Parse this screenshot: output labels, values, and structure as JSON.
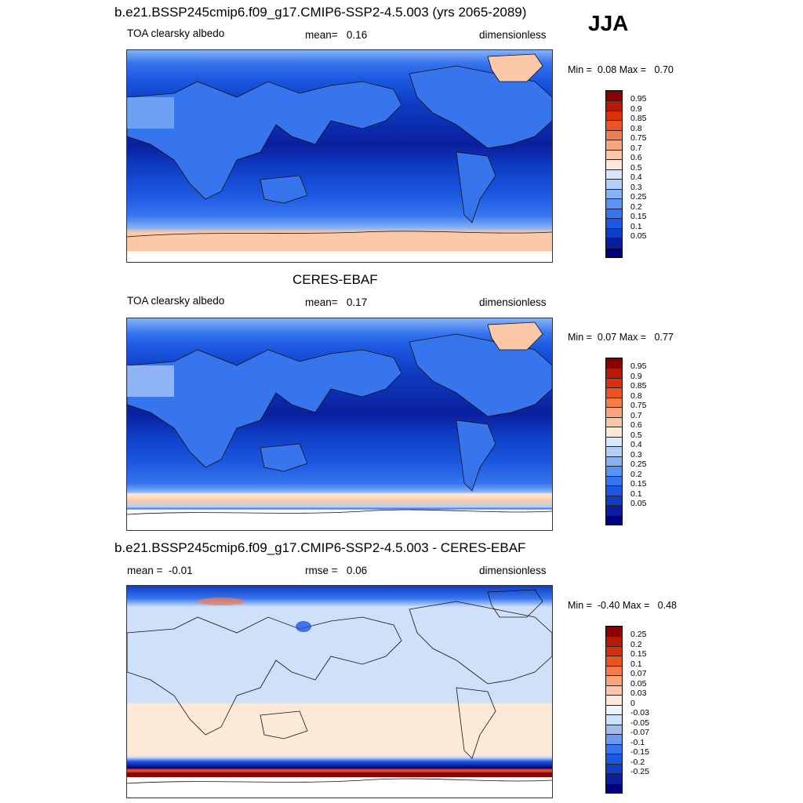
{
  "season": "JJA",
  "colors": {
    "albedo": [
      "#00007f",
      "#0a1f9e",
      "#0f3dc4",
      "#1b57e0",
      "#3775ee",
      "#5a94f4",
      "#86b2f7",
      "#b5cff8",
      "#d9e6fb",
      "#fde9d8",
      "#fbc9a8",
      "#f7a57b",
      "#f37d4d",
      "#ec5424",
      "#d6310c",
      "#b51a04",
      "#8b0000"
    ],
    "diff": [
      "#00007f",
      "#0a1f9e",
      "#0f3dc4",
      "#1b57e0",
      "#3775ee",
      "#6a9af4",
      "#9ebdf7",
      "#cfe0fa",
      "#eef4fd",
      "#fde9d8",
      "#fbc9a8",
      "#f7a57b",
      "#f37d4d",
      "#ec5424",
      "#d6310c",
      "#b51a04",
      "#8b0000"
    ]
  },
  "panels": [
    {
      "title": "b.e21.BSSP245cmip6.f09_g17.CMIP6-SSP2-4.5.003 (yrs 2065-2089)",
      "left_label": "TOA clearsky albedo",
      "center_label": "mean=",
      "center_value": "0.16",
      "right_label": "dimensionless",
      "min_label": "Min =",
      "min_value": "0.08",
      "max_label": "Max =",
      "max_value": "0.70",
      "levels": [
        "0.95",
        "0.9",
        "0.85",
        "0.8",
        "0.75",
        "0.7",
        "0.6",
        "0.5",
        "0.4",
        "0.3",
        "0.25",
        "0.2",
        "0.15",
        "0.1",
        "0.05"
      ]
    },
    {
      "title": "CERES-EBAF",
      "left_label": "TOA clearsky albedo",
      "center_label": "mean=",
      "center_value": "0.17",
      "right_label": "dimensionless",
      "min_label": "Min =",
      "min_value": "0.07",
      "max_label": "Max =",
      "max_value": "0.77",
      "levels": [
        "0.95",
        "0.9",
        "0.85",
        "0.8",
        "0.75",
        "0.7",
        "0.6",
        "0.5",
        "0.4",
        "0.3",
        "0.25",
        "0.2",
        "0.15",
        "0.1",
        "0.05"
      ]
    },
    {
      "title": "b.e21.BSSP245cmip6.f09_g17.CMIP6-SSP2-4.5.003 - CERES-EBAF",
      "left_label": "mean =",
      "left_value": "-0.01",
      "center_label": "rmse =",
      "center_value": "0.06",
      "right_label": "dimensionless",
      "min_label": "Min =",
      "min_value": "-0.40",
      "max_label": "Max =",
      "max_value": "0.48",
      "levels": [
        "0.25",
        "0.2",
        "0.15",
        "0.1",
        "0.07",
        "0.05",
        "0.03",
        "0",
        "-0.03",
        "-0.05",
        "-0.07",
        "-0.1",
        "-0.15",
        "-0.2",
        "-0.25"
      ]
    }
  ]
}
